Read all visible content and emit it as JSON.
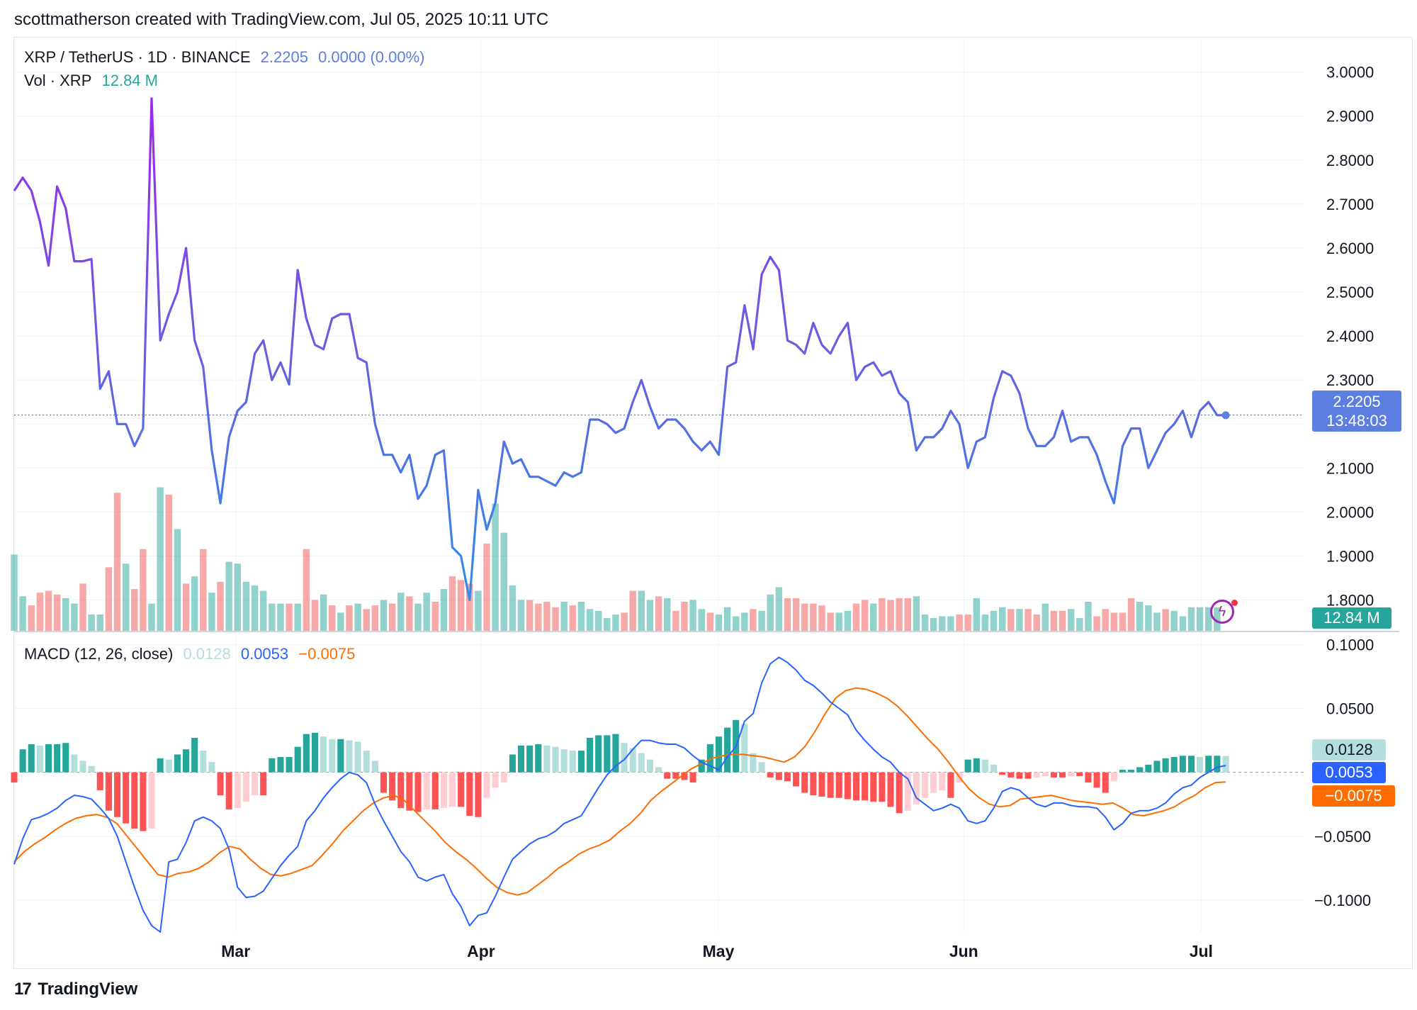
{
  "attribution": "scottmatherson created with TradingView.com, Jul 05, 2025 10:11 UTC",
  "brand": "TradingView",
  "legend": {
    "symbol": "XRP / TetherUS · 1D · BINANCE",
    "price": "2.2205",
    "change": "0.0000 (0.00%)",
    "volume_label": "Vol · XRP",
    "volume_value": "12.84 M",
    "macd_label": "MACD (12, 26, close)",
    "macd_hist": "0.0128",
    "macd_value": "0.0053",
    "macd_signal": "−0.0075"
  },
  "tags": {
    "price": "2.2205",
    "countdown": "13:48:03",
    "volume": "12.84 M",
    "hist": "0.0128",
    "macd": "0.0053",
    "signal": "−0.0075"
  },
  "icons": {
    "flash": "flash-icon",
    "logo": "tradingview-logo-icon"
  },
  "colors": {
    "price_line_top": "#9c27f0",
    "price_line_bottom": "#2f8fe6",
    "volume_up": "#26a69a",
    "volume_down": "#ef5350",
    "macd_line": "#2962ff",
    "signal_line": "#ff6d00",
    "hist_up_strong": "#26a69a",
    "hist_up_weak": "#b2dfdb",
    "hist_down_strong": "#ff5252",
    "hist_down_weak": "#ffcdd2"
  },
  "chart_data": [
    {
      "type": "line",
      "title": "XRP / TetherUS · 1D · BINANCE",
      "x_range": [
        "2025-02-01",
        "2025-07-05"
      ],
      "x_ticks": [
        {
          "date": "2025-03-01",
          "label": "Mar"
        },
        {
          "date": "2025-04-01",
          "label": "Apr"
        },
        {
          "date": "2025-05-01",
          "label": "May"
        },
        {
          "date": "2025-06-01",
          "label": "Jun"
        },
        {
          "date": "2025-07-01",
          "label": "Jul"
        }
      ],
      "ylim": [
        1.73,
        3.08
      ],
      "y_ticks": [
        "3.0000",
        "2.9000",
        "2.8000",
        "2.7000",
        "2.6000",
        "2.5000",
        "2.4000",
        "2.3000",
        "2.2000",
        "2.1000",
        "2.0000",
        "1.9000",
        "1.8000"
      ],
      "last_price": 2.2205,
      "series": [
        {
          "dates": [
            "2025-02-01",
            "2025-07-05"
          ],
          "close": [
            2.73,
            2.76,
            2.73,
            2.66,
            2.56,
            2.74,
            2.69,
            2.57,
            2.57,
            2.575,
            2.28,
            2.32,
            2.2,
            2.2,
            2.15,
            2.19,
            2.94,
            2.39,
            2.45,
            2.5,
            2.6,
            2.39,
            2.33,
            2.14,
            2.02,
            2.17,
            2.23,
            2.25,
            2.36,
            2.39,
            2.3,
            2.34,
            2.29,
            2.55,
            2.44,
            2.38,
            2.37,
            2.44,
            2.45,
            2.45,
            2.35,
            2.34,
            2.2,
            2.13,
            2.13,
            2.09,
            2.13,
            2.03,
            2.06,
            2.13,
            2.14,
            1.92,
            1.9,
            1.8,
            2.05,
            1.96,
            2.02,
            2.16,
            2.11,
            2.12,
            2.08,
            2.08,
            2.07,
            2.06,
            2.09,
            2.08,
            2.09,
            2.21,
            2.21,
            2.2,
            2.18,
            2.19,
            2.25,
            2.3,
            2.24,
            2.19,
            2.21,
            2.21,
            2.19,
            2.16,
            2.14,
            2.16,
            2.13,
            2.33,
            2.34,
            2.47,
            2.37,
            2.54,
            2.58,
            2.55,
            2.39,
            2.38,
            2.36,
            2.43,
            2.38,
            2.36,
            2.4,
            2.43,
            2.3,
            2.33,
            2.34,
            2.31,
            2.32,
            2.27,
            2.25,
            2.14,
            2.17,
            2.17,
            2.19,
            2.23,
            2.2,
            2.1,
            2.16,
            2.17,
            2.26,
            2.32,
            2.31,
            2.27,
            2.19,
            2.15,
            2.15,
            2.17,
            2.23,
            2.16,
            2.17,
            2.17,
            2.13,
            2.07,
            2.02,
            2.15,
            2.19,
            2.19,
            2.1,
            2.14,
            2.18,
            2.2,
            2.23,
            2.17,
            2.23,
            2.25,
            2.22,
            2.22
          ]
        }
      ]
    },
    {
      "type": "bar",
      "title": "Vol · XRP",
      "last_value": "12.84 M",
      "series": [
        {
          "dates": [
            "2025-02-01",
            "2025-07-05"
          ],
          "volume_relative": [
            0.42,
            0.19,
            0.14,
            0.21,
            0.22,
            0.2,
            0.18,
            0.15,
            0.26,
            0.09,
            0.09,
            0.35,
            0.76,
            0.37,
            0.23,
            0.45,
            0.15,
            0.79,
            0.75,
            0.56,
            0.26,
            0.3,
            0.45,
            0.21,
            0.27,
            0.38,
            0.37,
            0.27,
            0.25,
            0.22,
            0.15,
            0.15,
            0.15,
            0.15,
            0.45,
            0.17,
            0.2,
            0.14,
            0.1,
            0.14,
            0.15,
            0.12,
            0.14,
            0.17,
            0.15,
            0.21,
            0.19,
            0.15,
            0.21,
            0.16,
            0.23,
            0.3,
            0.28,
            0.26,
            0.22,
            0.48,
            0.7,
            0.54,
            0.25,
            0.17,
            0.17,
            0.15,
            0.16,
            0.13,
            0.16,
            0.14,
            0.16,
            0.12,
            0.11,
            0.07,
            0.09,
            0.1,
            0.22,
            0.22,
            0.17,
            0.19,
            0.18,
            0.11,
            0.16,
            0.17,
            0.12,
            0.1,
            0.09,
            0.13,
            0.08,
            0.1,
            0.12,
            0.11,
            0.2,
            0.24,
            0.18,
            0.18,
            0.15,
            0.15,
            0.14,
            0.1,
            0.1,
            0.11,
            0.15,
            0.17,
            0.15,
            0.18,
            0.17,
            0.18,
            0.18,
            0.19,
            0.09,
            0.07,
            0.08,
            0.08,
            0.09,
            0.09,
            0.18,
            0.09,
            0.11,
            0.13,
            0.12,
            0.12,
            0.12,
            0.09,
            0.15,
            0.11,
            0.11,
            0.12,
            0.07,
            0.16,
            0.08,
            0.12,
            0.1,
            0.1,
            0.18,
            0.16,
            0.14,
            0.1,
            0.12,
            0.11,
            0.08,
            0.13,
            0.13,
            0.13,
            0.13
          ],
          "direction": [
            "up",
            "up",
            "down",
            "down",
            "down",
            "down",
            "up",
            "up",
            "down",
            "up",
            "up",
            "down",
            "down",
            "up",
            "down",
            "down",
            "up",
            "up",
            "down",
            "up",
            "down",
            "up",
            "down",
            "up",
            "down",
            "up",
            "up",
            "up",
            "up",
            "up",
            "up",
            "up",
            "down",
            "up",
            "down",
            "down",
            "up",
            "down",
            "up",
            "down",
            "up",
            "down",
            "down",
            "up",
            "down",
            "up",
            "down",
            "up",
            "up",
            "down",
            "up",
            "down",
            "down",
            "down",
            "up",
            "down",
            "up",
            "up",
            "up",
            "up",
            "down",
            "down",
            "down",
            "down",
            "up",
            "down",
            "up",
            "up",
            "up",
            "up",
            "up",
            "down",
            "down",
            "up",
            "up",
            "down",
            "up",
            "down",
            "down",
            "up",
            "up",
            "down",
            "up",
            "up",
            "up",
            "up",
            "down",
            "up",
            "up",
            "up",
            "down",
            "down",
            "down",
            "down",
            "down",
            "down",
            "up",
            "up",
            "down",
            "down",
            "up",
            "down",
            "down",
            "down",
            "down",
            "up",
            "up",
            "up",
            "up",
            "up",
            "down",
            "down",
            "up",
            "up",
            "up",
            "up",
            "down",
            "up",
            "down",
            "down",
            "up",
            "down",
            "down",
            "up",
            "up",
            "up",
            "down",
            "down",
            "down",
            "down",
            "down",
            "up",
            "up",
            "up",
            "down",
            "up",
            "up",
            "up",
            "up",
            "up",
            "up"
          ]
        }
      ]
    },
    {
      "type": "line",
      "title": "MACD (12, 26, close)",
      "ylim": [
        -0.125,
        0.108
      ],
      "y_ticks": [
        "0.1000",
        "0.0500",
        "−0.0500",
        "−0.1000"
      ],
      "series": [
        {
          "name": "MACD",
          "values": [
            -0.072,
            -0.052,
            -0.037,
            -0.035,
            -0.032,
            -0.028,
            -0.022,
            -0.018,
            -0.019,
            -0.021,
            -0.028,
            -0.036,
            -0.05,
            -0.07,
            -0.09,
            -0.108,
            -0.12,
            -0.125,
            -0.07,
            -0.068,
            -0.055,
            -0.038,
            -0.035,
            -0.038,
            -0.044,
            -0.06,
            -0.09,
            -0.098,
            -0.097,
            -0.093,
            -0.083,
            -0.073,
            -0.065,
            -0.058,
            -0.038,
            -0.03,
            -0.02,
            -0.012,
            -0.005,
            0.0,
            -0.002,
            -0.008,
            -0.025,
            -0.038,
            -0.05,
            -0.062,
            -0.07,
            -0.082,
            -0.085,
            -0.082,
            -0.08,
            -0.095,
            -0.105,
            -0.12,
            -0.112,
            -0.11,
            -0.097,
            -0.082,
            -0.068,
            -0.062,
            -0.056,
            -0.052,
            -0.05,
            -0.046,
            -0.04,
            -0.037,
            -0.034,
            -0.023,
            -0.012,
            -0.002,
            0.005,
            0.01,
            0.018,
            0.025,
            0.025,
            0.023,
            0.022,
            0.022,
            0.019,
            0.013,
            0.008,
            0.005,
            0.002,
            0.012,
            0.02,
            0.04,
            0.046,
            0.07,
            0.085,
            0.09,
            0.086,
            0.08,
            0.072,
            0.068,
            0.062,
            0.055,
            0.05,
            0.045,
            0.033,
            0.025,
            0.018,
            0.012,
            0.008,
            0.0,
            -0.005,
            -0.02,
            -0.025,
            -0.03,
            -0.028,
            -0.025,
            -0.028,
            -0.038,
            -0.04,
            -0.038,
            -0.028,
            -0.015,
            -0.012,
            -0.014,
            -0.02,
            -0.025,
            -0.027,
            -0.024,
            -0.024,
            -0.026,
            -0.027,
            -0.027,
            -0.028,
            -0.035,
            -0.045,
            -0.04,
            -0.032,
            -0.03,
            -0.03,
            -0.028,
            -0.024,
            -0.017,
            -0.012,
            -0.01,
            -0.004,
            0.0,
            0.004,
            0.0053
          ]
        },
        {
          "name": "Signal",
          "values": [
            -0.07,
            -0.062,
            -0.056,
            -0.051,
            -0.045,
            -0.04,
            -0.036,
            -0.034,
            -0.033,
            -0.035,
            -0.04,
            -0.05,
            -0.06,
            -0.07,
            -0.08,
            -0.082,
            -0.079,
            -0.078,
            -0.075,
            -0.07,
            -0.063,
            -0.058,
            -0.06,
            -0.068,
            -0.075,
            -0.08,
            -0.081,
            -0.079,
            -0.076,
            -0.073,
            -0.065,
            -0.056,
            -0.046,
            -0.038,
            -0.03,
            -0.024,
            -0.02,
            -0.018,
            -0.022,
            -0.03,
            -0.038,
            -0.046,
            -0.055,
            -0.062,
            -0.068,
            -0.075,
            -0.083,
            -0.09,
            -0.094,
            -0.096,
            -0.094,
            -0.088,
            -0.082,
            -0.075,
            -0.07,
            -0.064,
            -0.06,
            -0.057,
            -0.053,
            -0.046,
            -0.04,
            -0.032,
            -0.022,
            -0.015,
            -0.009,
            -0.003,
            0.003,
            0.007,
            0.011,
            0.013,
            0.014,
            0.014,
            0.013,
            0.012,
            0.01,
            0.008,
            0.012,
            0.02,
            0.032,
            0.046,
            0.058,
            0.064,
            0.066,
            0.065,
            0.062,
            0.058,
            0.052,
            0.044,
            0.035,
            0.026,
            0.018,
            0.008,
            -0.003,
            -0.013,
            -0.02,
            -0.025,
            -0.027,
            -0.026,
            -0.021,
            -0.02,
            -0.019,
            -0.018,
            -0.02,
            -0.022,
            -0.023,
            -0.024,
            -0.025,
            -0.024,
            -0.028,
            -0.033,
            -0.034,
            -0.032,
            -0.03,
            -0.027,
            -0.022,
            -0.018,
            -0.012,
            -0.008,
            -0.0075
          ]
        },
        {
          "name": "Histogram",
          "values": [
            -0.008,
            0.018,
            0.022,
            0.021,
            0.022,
            0.022,
            0.023,
            0.014,
            0.009,
            0.005,
            -0.014,
            -0.03,
            -0.035,
            -0.04,
            -0.044,
            -0.046,
            -0.044,
            0.011,
            0.01,
            0.014,
            0.018,
            0.027,
            0.017,
            0.008,
            -0.018,
            -0.029,
            -0.028,
            -0.023,
            -0.018,
            -0.018,
            0.011,
            0.012,
            0.012,
            0.02,
            0.03,
            0.031,
            0.028,
            0.026,
            0.026,
            0.025,
            0.024,
            0.017,
            0.009,
            -0.016,
            -0.022,
            -0.028,
            -0.03,
            -0.031,
            -0.029,
            -0.029,
            -0.028,
            -0.027,
            -0.027,
            -0.034,
            -0.035,
            -0.02,
            -0.012,
            -0.008,
            0.014,
            0.021,
            0.021,
            0.022,
            0.021,
            0.02,
            0.018,
            0.017,
            0.017,
            0.027,
            0.029,
            0.029,
            0.03,
            0.023,
            0.019,
            0.015,
            0.01,
            0.004,
            -0.005,
            -0.005,
            -0.006,
            -0.008,
            0.01,
            0.022,
            0.028,
            0.035,
            0.041,
            0.038,
            0.015,
            0.008,
            -0.004,
            -0.006,
            -0.007,
            -0.011,
            -0.016,
            -0.018,
            -0.019,
            -0.02,
            -0.02,
            -0.021,
            -0.022,
            -0.022,
            -0.023,
            -0.023,
            -0.027,
            -0.032,
            -0.03,
            -0.025,
            -0.02,
            -0.016,
            -0.014,
            -0.02,
            -0.008,
            0.01,
            0.011,
            0.01,
            0.006,
            -0.002,
            -0.004,
            -0.005,
            -0.005,
            -0.004,
            -0.003,
            -0.004,
            -0.004,
            -0.003,
            -0.003,
            -0.008,
            -0.012,
            -0.016,
            -0.007,
            0.002,
            0.002,
            0.004,
            0.006,
            0.009,
            0.011,
            0.012,
            0.013,
            0.013,
            0.012,
            0.013,
            0.013,
            0.0128
          ]
        }
      ]
    }
  ]
}
